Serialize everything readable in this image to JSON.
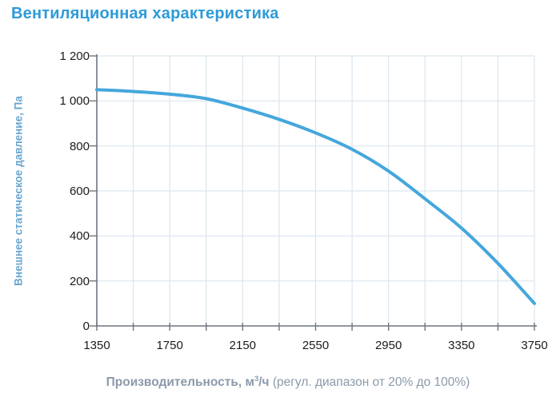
{
  "page": {
    "title": "Вентиляционная характеристика"
  },
  "chart_data": {
    "type": "line",
    "title": "Вентиляционная характеристика",
    "ylabel": "Внешнее статическое давление, Па",
    "xlabel": {
      "bold_name": "Производительность",
      "sep": ", ",
      "unit_base": "м",
      "unit_sup": "3",
      "unit_rest": "/ч",
      "note": " (регул. диапазон от 20% до 100%)"
    },
    "x": [
      1350,
      1550,
      1750,
      1950,
      2150,
      2350,
      2550,
      2750,
      2950,
      3150,
      3350,
      3550,
      3750
    ],
    "y": [
      1050,
      1042,
      1030,
      1010,
      968,
      918,
      858,
      785,
      688,
      565,
      435,
      278,
      100
    ],
    "xlim": [
      1350,
      3750
    ],
    "ylim": [
      0,
      1200
    ],
    "x_ticks": [
      1350,
      1550,
      1750,
      1950,
      2150,
      2350,
      2550,
      2750,
      2950,
      3150,
      3350,
      3550,
      3750
    ],
    "y_ticks": [
      0,
      200,
      400,
      600,
      800,
      1000,
      1200
    ],
    "x_label_ticks": [
      1350,
      1750,
      2150,
      2550,
      2950,
      3350,
      3750
    ],
    "x_tick_labels": [
      "1350",
      "1750",
      "2150",
      "2550",
      "2950",
      "3350",
      "3750"
    ],
    "y_tick_labels": [
      "0",
      "200",
      "400",
      "600",
      "800",
      "1 000",
      "1 200"
    ],
    "grid": true,
    "legend": "none",
    "colors": {
      "curve": "#45a7dc",
      "grid": "#dbe6ee",
      "axis": "#6e7680",
      "title": "#2e9ad7",
      "y_axis_title": "#68a6d0",
      "caption": "#8b9aaa",
      "tick_text": "#1c1c1c"
    }
  }
}
